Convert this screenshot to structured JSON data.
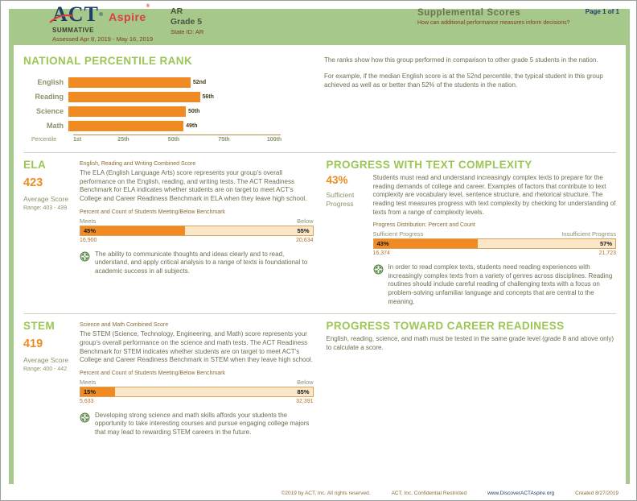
{
  "header": {
    "logo_act": "ACT",
    "logo_reg": "®",
    "logo_aspire": "Aspire",
    "program": "SUMMATIVE",
    "assessed": "Assessed Apr 8, 2019 - May 16, 2019",
    "org": "AR",
    "grade": "Grade 5",
    "state_id": "State ID: AR",
    "report_title": "Supplemental Scores",
    "report_subtitle": "How can additional performance measures inform decisions?",
    "page": "Page 1 of 1"
  },
  "percentile_section": {
    "title": "NATIONAL PERCENTILE RANK",
    "paragraph1": "The ranks show how this group performed in comparison to other grade 5 students in the nation.",
    "paragraph2": "For example, if the median English score is at the 52nd percentile, the typical student in this group achieved as well as or better than 52% of the students in the nation."
  },
  "chart_data": {
    "type": "bar",
    "orientation": "horizontal",
    "title": "NATIONAL PERCENTILE RANK",
    "categories": [
      "English",
      "Reading",
      "Science",
      "Math"
    ],
    "values": [
      52,
      56,
      50,
      49
    ],
    "value_labels": [
      "52nd",
      "56th",
      "50th",
      "49th"
    ],
    "xlabel": "Percentile",
    "xticks": [
      "1st",
      "25th",
      "50th",
      "75th",
      "100th"
    ],
    "xlim": [
      0,
      100
    ],
    "bar_color": "#EF8B22",
    "grid": false,
    "legend": "none"
  },
  "ela": {
    "title": "ELA",
    "score": "423",
    "score_label": "Average Score",
    "range": "Range: 403 - 439",
    "combined_label": "English, Reading and Writing Combined Score",
    "paragraph": "The ELA (English Language Arts) score represents your group's overall performance on the English, reading, and writing tests. The ACT Readiness Benchmark for ELA indicates whether students are on target to meet ACT's College and Career Readiness Benchmark in ELA when they leave high school.",
    "benchmark": {
      "caption": "Percent and Count of Students Meeting/Below Benchmark",
      "left_label": "Meets",
      "right_label": "Below",
      "left_pct": "45%",
      "right_pct": "55%",
      "left_value": 45,
      "left_count": "16,900",
      "right_count": "20,634"
    },
    "note": "The ability to communicate thoughts and ideas clearly and to read, understand, and apply critical analysis to a range of texts is foundational to academic success in all subjects."
  },
  "text_complexity": {
    "title": "PROGRESS WITH TEXT COMPLEXITY",
    "pct": "43%",
    "pct_label": "Sufficient Progress",
    "paragraph": "Students must read and understand increasingly complex texts to prepare for the reading demands of college and career. Examples of factors that contribute to text complexity are vocabulary level, sentence structure, and rhetorical structure. The reading test measures progress with text complexity by checking for understanding of texts from a range of complexity levels.",
    "distribution": {
      "caption": "Progress Distribution: Percent and Count",
      "left_label": "Sufficient Progress",
      "right_label": "Insufficient Progress",
      "left_pct": "43%",
      "right_pct": "57%",
      "left_value": 43,
      "left_count": "16,374",
      "right_count": "21,723"
    },
    "note": "In order to read complex texts, students need reading experiences with increasingly complex texts from a variety of genres across disciplines. Reading routines should include careful reading of challenging texts with a focus on problem-solving unfamiliar language and concepts that are central to the meaning."
  },
  "stem": {
    "title": "STEM",
    "score": "419",
    "score_label": "Average Score",
    "range": "Range: 400 - 442",
    "combined_label": "Science and Math Combined Score",
    "paragraph": "The STEM (Science, Technology, Engineering, and Math) score represents your group's overall performance on the science and math tests. The ACT Readiness Benchmark for STEM indicates whether students are on target to meet ACT's College and Career Readiness Benchmark in STEM when they leave high school.",
    "benchmark": {
      "caption": "Percent and Count of Students Meeting/Below Benchmark",
      "left_label": "Meets",
      "right_label": "Below",
      "left_pct": "15%",
      "right_pct": "85%",
      "left_value": 15,
      "left_count": "5,633",
      "right_count": "32,391"
    },
    "note": "Developing strong science and math skills affords your students the opportunity to take interesting courses and pursue engaging college majors that may lead to rewarding STEM careers in the future."
  },
  "career": {
    "title": "PROGRESS TOWARD CAREER READINESS",
    "paragraph": "English, reading, science, and math must be tested in the same grade level (grade 8 and above only) to calculate a score."
  },
  "footer": {
    "copyright": "©2019 by ACT, Inc. All rights reserved.",
    "confidential": "ACT, Inc. Confidential Restricted",
    "url": "www.DiscoverACTAspire.org",
    "created": "Created 8/27/2019"
  },
  "colors": {
    "band_green": "#A6C98B",
    "heading_green": "#9CC655",
    "accent_orange": "#EF8B22",
    "bar_cream": "#FAE7C8",
    "navy": "#1E3E6E",
    "logo_red": "#D9403A",
    "maroon": "#7C3D1E",
    "body_olive": "#6D6E4E",
    "note_green": "#4F7F3C"
  }
}
